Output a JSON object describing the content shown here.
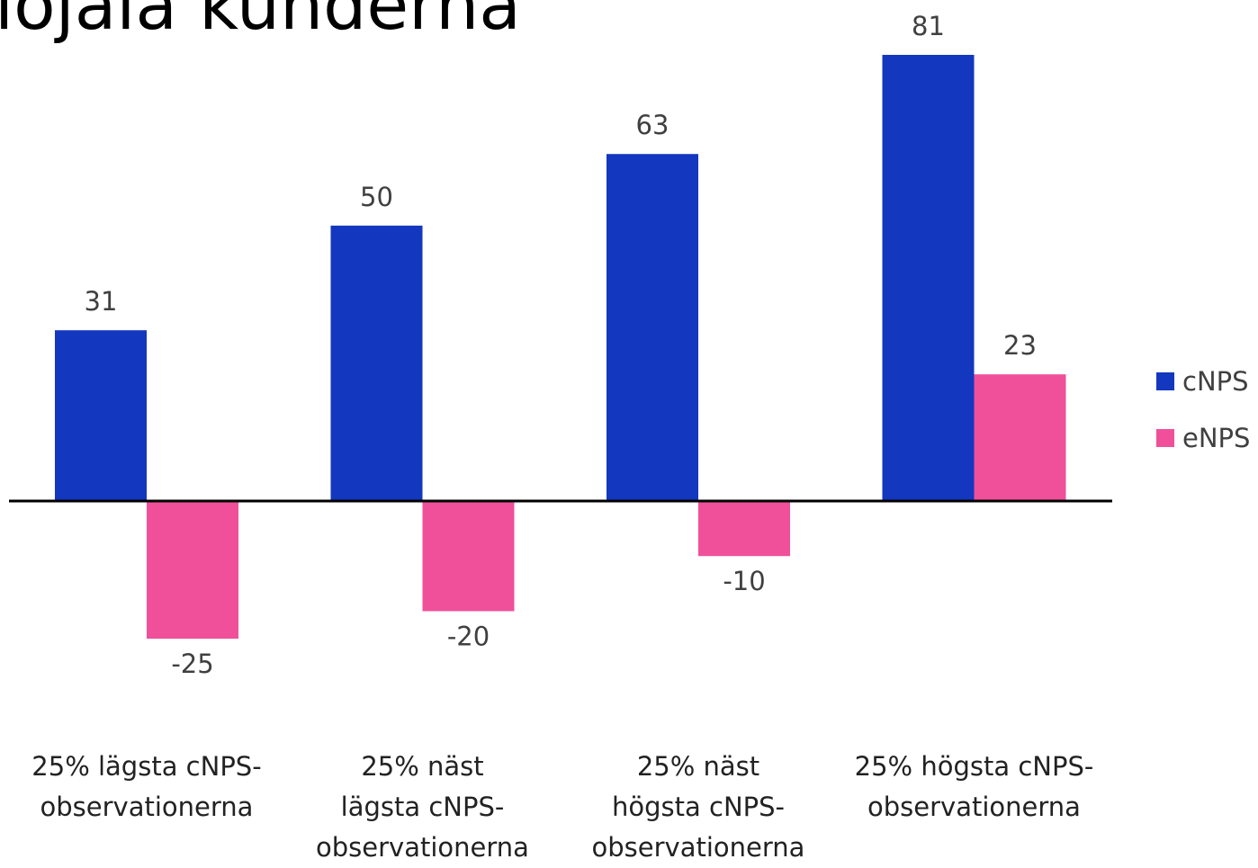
{
  "chart_data": {
    "type": "bar",
    "title": "lojala kunderna",
    "categories": [
      "25% lägsta cNPS-\nobservationerna",
      "25% näst\nlägsta cNPS-\nobservationerna",
      "25% näst\nhögsta cNPS-\nobservationerna",
      "25% högsta cNPS-\nobservationerna"
    ],
    "series": [
      {
        "name": "cNPS",
        "color": "#1337be",
        "values": [
          31,
          50,
          63,
          81
        ]
      },
      {
        "name": "eNPS",
        "color": "#f0509a",
        "values": [
          -25,
          -20,
          -10,
          23
        ]
      }
    ],
    "legend": "right"
  }
}
